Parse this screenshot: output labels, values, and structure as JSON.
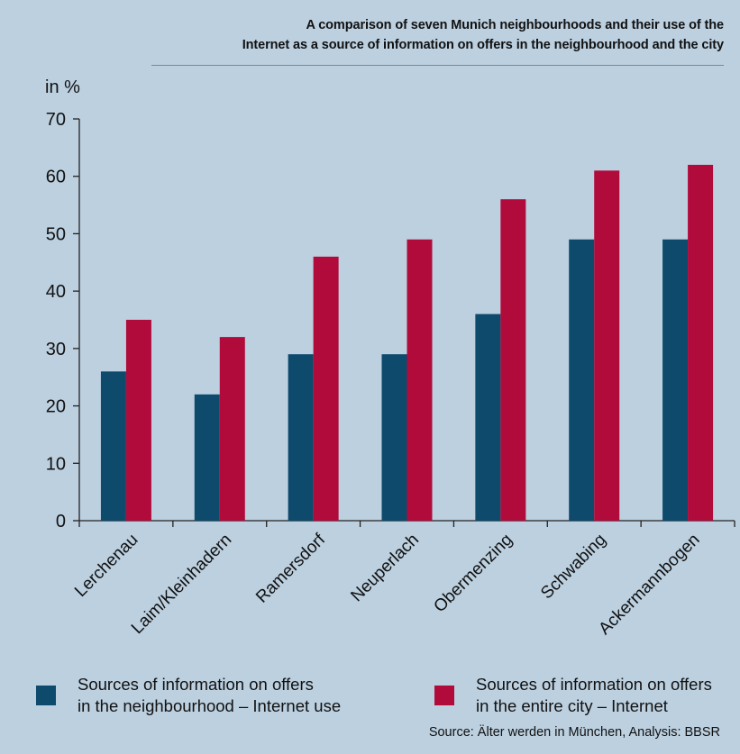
{
  "chart_data": {
    "type": "bar",
    "title": "A comparison of seven Munich neighbourhoods and their use of the Internet as a source of information on offers in the neighbourhood and the city",
    "title_lines": [
      "A comparison of seven Munich neighbourhoods and their use of the",
      "Internet as a source of information on offers in the neighbourhood and the city"
    ],
    "ylabel": "in %",
    "xlabel": "",
    "ylim": [
      0,
      70
    ],
    "yticks": [
      0,
      10,
      20,
      30,
      40,
      50,
      60,
      70
    ],
    "grid": false,
    "categories": [
      "Lerchenau",
      "Laim/Kleinhadern",
      "Ramersdorf",
      "Neuperlach",
      "Obermenzing",
      "Schwabing",
      "Ackermannbogen"
    ],
    "series": [
      {
        "name": "Sources of information on offers in the neighbourhood – Internet use",
        "legend_text": "Sources of information on offers\nin the neighbourhood – Internet use",
        "color": "#0d4a6b",
        "values": [
          26,
          22,
          29,
          29,
          36,
          49,
          49
        ]
      },
      {
        "name": "Sources of information on offers in the entire city – Internet",
        "legend_text": "Sources of information on offers\nin the entire city – Internet",
        "color": "#b10b3c",
        "values": [
          35,
          32,
          46,
          49,
          56,
          61,
          62
        ]
      }
    ],
    "legend_placement": "bottom",
    "source": "Source: Älter werden in München, Analysis: BBSR"
  }
}
